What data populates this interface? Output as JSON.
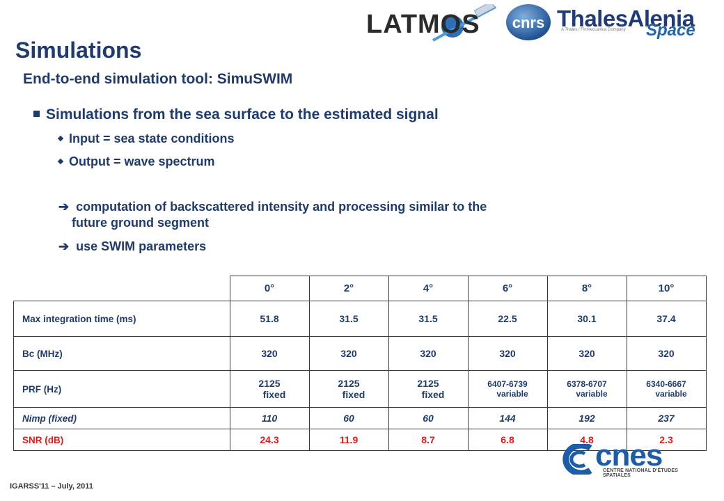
{
  "logos": {
    "latmos": "LATMOS",
    "cnrs": "cnrs",
    "thales_main": "ThalesAlenia",
    "thales_tag": "A Thales / Finmeccanica Company",
    "thales_space": "Space",
    "cnes": "cnes",
    "cnes_sub": "CENTRE NATIONAL D'ÉTUDES SPATIALES"
  },
  "title": "Simulations",
  "subtitle": "End-to-end simulation tool: SimuSWIM",
  "bullets": {
    "main": "Simulations from the sea surface to the estimated signal",
    "input": "Input = sea state conditions",
    "output": "Output = wave spectrum",
    "arrow1_line1": "computation of backscattered intensity and processing similar to the",
    "arrow1_line2": "future ground segment",
    "arrow2": "use SWIM parameters",
    "arrow_glyph": "➔"
  },
  "table": {
    "headers": [
      "0°",
      "2°",
      "4°",
      "6°",
      "8°",
      "10°"
    ],
    "rows": {
      "max_integration": {
        "label": "Max integration time (ms)",
        "values": [
          "51.8",
          "31.5",
          "31.5",
          "22.5",
          "30.1",
          "37.4"
        ]
      },
      "bc": {
        "label": "Bc (MHz)",
        "values": [
          "320",
          "320",
          "320",
          "320",
          "320",
          "320"
        ]
      },
      "prf": {
        "label": "PRF (Hz)",
        "values": [
          {
            "a": "2125",
            "b": "fixed"
          },
          {
            "a": "2125",
            "b": "fixed"
          },
          {
            "a": "2125",
            "b": "fixed"
          },
          {
            "a": "6407-6739",
            "b": "variable"
          },
          {
            "a": "6378-6707",
            "b": "variable"
          },
          {
            "a": "6340-6667",
            "b": "variable"
          }
        ]
      },
      "nimp": {
        "label": "Nimp (fixed)",
        "values": [
          "110",
          "60",
          "60",
          "144",
          "192",
          "237"
        ]
      },
      "snr": {
        "label": "SNR (dB)",
        "values": [
          "24.3",
          "11.9",
          "8.7",
          "6.8",
          "4.8",
          "2.3"
        ]
      }
    }
  },
  "footer": "IGARSS'11 – July, 2011",
  "colors": {
    "text": "#1f3b6e",
    "snr": "#e21b1b",
    "cnes_blue": "#1b5da8"
  }
}
